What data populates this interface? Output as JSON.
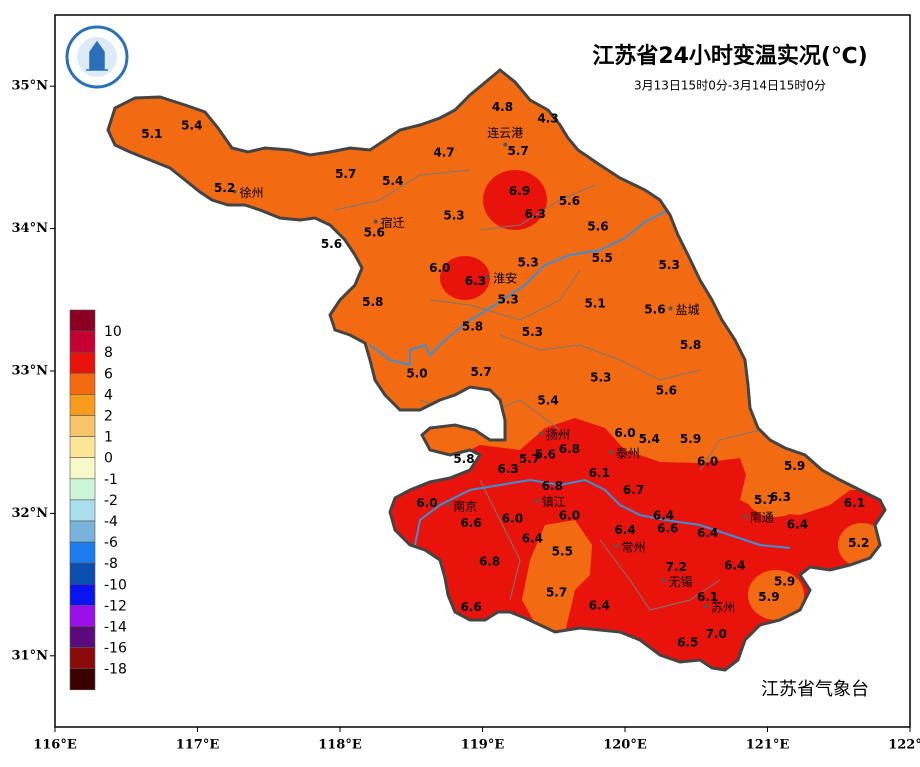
{
  "title": "江苏省24小时变温实况(℃)",
  "subtitle": "3月13日15时0分-3月14日15时0分",
  "footer": "江苏省气象台",
  "map": {
    "xlim": [
      116,
      122
    ],
    "ylim": [
      30.5,
      35.5
    ],
    "xticks": [
      {
        "value": 116,
        "label": "116°E"
      },
      {
        "value": 117,
        "label": "117°E"
      },
      {
        "value": 118,
        "label": "118°E"
      },
      {
        "value": 119,
        "label": "119°E"
      },
      {
        "value": 120,
        "label": "120°E"
      },
      {
        "value": 121,
        "label": "121°E"
      },
      {
        "value": 122,
        "label": "122°E"
      }
    ],
    "yticks": [
      {
        "value": 31,
        "label": "31°N"
      },
      {
        "value": 32,
        "label": "32°N"
      },
      {
        "value": 33,
        "label": "33°N"
      },
      {
        "value": 34,
        "label": "34°N"
      },
      {
        "value": 35,
        "label": "35°N"
      }
    ],
    "stations": {
      "values": [
        4.8,
        4.3,
        5.1,
        5.4,
        5.7,
        4.7,
        5.7,
        5.4,
        5.2,
        6.9,
        5.6,
        5.3,
        6.3,
        5.6,
        5.6,
        5.6,
        5.5,
        5.3,
        5.3,
        6.0,
        6.3,
        5.3,
        5.1,
        5.6,
        5.8,
        5.8,
        5.3,
        5.8,
        5.0,
        5.7,
        5.3,
        5.6,
        5.4,
        6.0,
        5.4,
        5.9,
        5.6,
        5.7,
        6.8,
        5.8,
        6.3,
        6.0,
        5.9,
        6.1,
        6.8,
        6.7,
        5.7,
        6.3,
        6.1,
        6.0,
        6.6,
        6.0,
        6.0,
        6.4,
        6.4,
        6.4,
        6.6,
        6.4,
        6.4,
        5.2,
        5.5,
        6.8,
        7.2,
        6.4,
        5.9,
        5.7,
        6.1,
        5.9,
        6.6,
        6.4,
        7.0,
        6.5
      ],
      "value_labels": [
        "4.8",
        "4.3",
        "5.1",
        "5.4",
        "5.7",
        "4.7",
        "5.7",
        "5.4",
        "5.2",
        "6.9",
        "5.6",
        "5.3",
        "6.3",
        "5.6",
        "5.6",
        "5.6",
        "5.5",
        "5.3",
        "5.3",
        "6.0",
        "6.3",
        "5.3",
        "5.1",
        "5.6",
        "5.8",
        "5.8",
        "5.3",
        "5.8",
        "5.0",
        "5.7",
        "5.3",
        "5.6",
        "5.4",
        "6.0",
        "5.4",
        "5.9",
        "5.6",
        "5.7",
        "6.8",
        "5.8",
        "6.3",
        "6.0",
        "5.9",
        "6.1",
        "6.8",
        "6.7",
        "5.7",
        "6.3",
        "6.1",
        "6.0",
        "6.6",
        "6.0",
        "6.0",
        "6.4",
        "6.4",
        "6.4",
        "6.6",
        "6.4",
        "6.4",
        "5.2",
        "5.5",
        "6.8",
        "7.2",
        "6.4",
        "5.9",
        "5.7",
        "6.1",
        "5.9",
        "6.6",
        "6.4",
        "7.0",
        "6.5"
      ],
      "lon": [
        119.14,
        119.46,
        116.68,
        116.96,
        119.25,
        118.73,
        118.04,
        118.37,
        117.19,
        119.26,
        119.61,
        118.8,
        119.37,
        118.24,
        117.94,
        119.81,
        119.84,
        119.32,
        120.31,
        118.7,
        118.95,
        119.18,
        119.79,
        120.21,
        118.23,
        118.93,
        119.35,
        120.46,
        118.54,
        118.99,
        119.83,
        120.29,
        119.46,
        120.0,
        120.17,
        120.46,
        119.44,
        119.33,
        119.61,
        118.87,
        119.18,
        120.58,
        121.19,
        119.82,
        119.49,
        120.06,
        120.98,
        121.09,
        121.61,
        118.61,
        118.92,
        119.21,
        119.61,
        120.27,
        121.21,
        120.0,
        120.3,
        120.58,
        119.35,
        121.64,
        119.56,
        119.05,
        120.36,
        120.77,
        121.12,
        119.52,
        120.58,
        121.01,
        118.92,
        119.82,
        120.64,
        120.44
      ],
      "lat": [
        34.85,
        34.77,
        34.66,
        34.72,
        34.54,
        34.53,
        34.38,
        34.33,
        34.28,
        34.26,
        34.19,
        34.09,
        34.1,
        33.97,
        33.89,
        34.01,
        33.79,
        33.76,
        33.74,
        33.72,
        33.63,
        33.5,
        33.47,
        33.43,
        33.48,
        33.31,
        33.27,
        33.18,
        32.98,
        32.99,
        32.95,
        32.86,
        32.79,
        32.56,
        32.52,
        32.52,
        32.41,
        32.38,
        32.45,
        32.38,
        32.31,
        32.36,
        32.33,
        32.28,
        32.19,
        32.16,
        32.09,
        32.11,
        32.07,
        32.07,
        31.93,
        31.96,
        31.98,
        31.98,
        31.92,
        31.88,
        31.89,
        31.86,
        31.82,
        31.79,
        31.73,
        31.66,
        31.62,
        31.63,
        31.52,
        31.44,
        31.41,
        31.41,
        31.34,
        31.35,
        31.15,
        31.09
      ]
    },
    "cities": {
      "names": [
        "连云港",
        "徐州",
        "宿迁",
        "淮安",
        "盐城",
        "扬州",
        "泰州",
        "镇江",
        "南京",
        "常州",
        "无锡",
        "苏州",
        "南通"
      ],
      "lon": [
        119.16,
        117.26,
        118.25,
        119.04,
        120.32,
        119.41,
        119.9,
        119.38,
        118.76,
        119.94,
        120.27,
        120.57,
        120.84
      ],
      "lat": [
        34.59,
        34.26,
        34.05,
        33.66,
        33.44,
        32.56,
        32.43,
        32.09,
        32.06,
        31.77,
        31.53,
        31.35,
        31.98
      ]
    }
  },
  "legend": {
    "levels": [
      10,
      8,
      6,
      4,
      2,
      1,
      0,
      -1,
      -2,
      -4,
      -6,
      -8,
      -10,
      -12,
      -14,
      -16,
      -18
    ],
    "colors": [
      "#8b0022",
      "#c40033",
      "#e8140c",
      "#f26b12",
      "#f99a1c",
      "#f6c46a",
      "#fce596",
      "#f8f8c8",
      "#cff5d9",
      "#a9e0ee",
      "#78b3db",
      "#1c7cf0",
      "#0a4fb0",
      "#0a14f0",
      "#9b10e6",
      "#5a0a7a",
      "#8b0a0a",
      "#3a0000"
    ]
  }
}
